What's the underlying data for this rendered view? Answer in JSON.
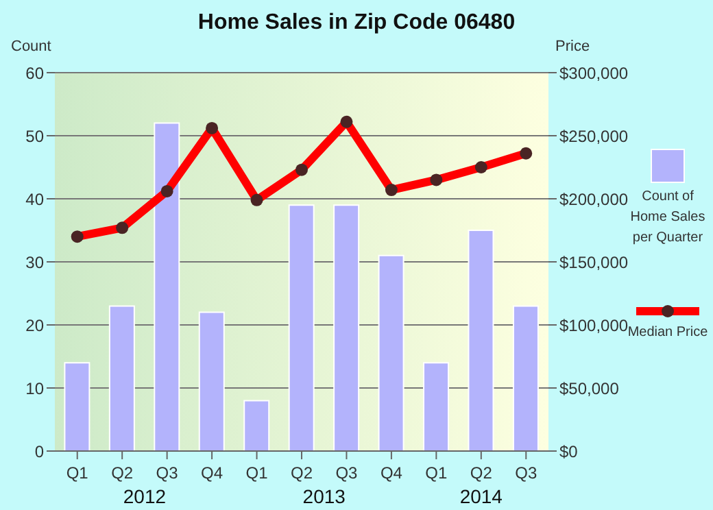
{
  "chart_data": {
    "type": "bar",
    "title": "Home Sales in Zip Code 06480",
    "ylabel": "Count",
    "y2label": "Price",
    "categories": [
      "Q1",
      "Q2",
      "Q3",
      "Q4",
      "Q1",
      "Q2",
      "Q3",
      "Q4",
      "Q1",
      "Q2",
      "Q3"
    ],
    "annotations": [
      "2012",
      "2013",
      "2014"
    ],
    "series": [
      {
        "name": "Count of Home Sales per Quarter",
        "color": "#b3b3fc",
        "values": [
          14,
          23,
          52,
          22,
          8,
          39,
          39,
          31,
          14,
          35,
          23
        ]
      },
      {
        "name": "Median Price",
        "type": "line",
        "axis": "y2",
        "color": "#ff0000",
        "values": [
          170000,
          177000,
          206000,
          256000,
          199000,
          223000,
          261000,
          207000,
          215000,
          225000,
          236000
        ]
      }
    ],
    "ylim": [
      0,
      60
    ],
    "yticks": [
      0,
      10,
      20,
      30,
      40,
      50,
      60
    ],
    "y2lim": [
      0,
      300000
    ],
    "y2ticks": [
      {
        "value": 0,
        "label": "$0"
      },
      {
        "value": 50000,
        "label": "$50,000"
      },
      {
        "value": 100000,
        "label": "$100,000"
      },
      {
        "value": 150000,
        "label": "$150,000"
      },
      {
        "value": 200000,
        "label": "$200,000"
      },
      {
        "value": 250000,
        "label": "$250,000"
      },
      {
        "value": 300000,
        "label": "$300,000"
      }
    ],
    "grid": "y",
    "legend": "right",
    "marker": "circle"
  }
}
